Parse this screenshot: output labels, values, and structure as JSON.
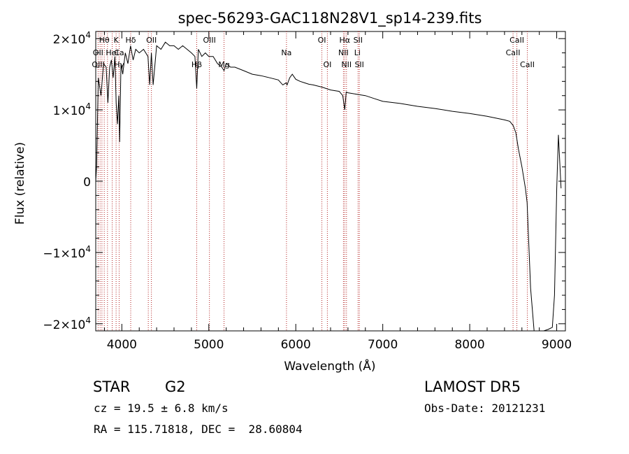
{
  "chart_data": {
    "type": "line",
    "title": "spec-56293-GAC118N28V1_sp14-239.fits",
    "xlabel": "Wavelength (Å)",
    "ylabel": "Flux (relative)",
    "xlim": [
      3700,
      9100
    ],
    "ylim": [
      -21000,
      21000
    ],
    "x_ticks": [
      4000,
      5000,
      6000,
      7000,
      8000,
      9000
    ],
    "x_tick_labels": [
      "4000",
      "5000",
      "6000",
      "7000",
      "8000",
      "9000"
    ],
    "y_ticks": [
      {
        "value": 20000,
        "mant": "2×10",
        "exp": "4"
      },
      {
        "value": 10000,
        "mant": "1×10",
        "exp": "4"
      },
      {
        "value": 0,
        "mant": "0",
        "exp": ""
      },
      {
        "value": -10000,
        "mant": "−1×10",
        "exp": "4"
      },
      {
        "value": -20000,
        "mant": "−2×10",
        "exp": "4"
      }
    ],
    "grid": false,
    "line_color": "#000000",
    "marker_color": "#b22222",
    "series": [
      {
        "x": [
          3700,
          3710,
          3730,
          3760,
          3790,
          3820,
          3840,
          3860,
          3880,
          3900,
          3920,
          3935,
          3950,
          3965,
          3975,
          3990,
          4010,
          4040,
          4070,
          4100,
          4130,
          4160,
          4200,
          4250,
          4300,
          4320,
          4340,
          4360,
          4400,
          4450,
          4500,
          4550,
          4600,
          4650,
          4700,
          4750,
          4800,
          4840,
          4861,
          4880,
          4920,
          4960,
          5000,
          5050,
          5100,
          5150,
          5175,
          5200,
          5250,
          5300,
          5400,
          5500,
          5600,
          5700,
          5800,
          5850,
          5890,
          5900,
          5930,
          5960,
          6000,
          6050,
          6100,
          6150,
          6200,
          6300,
          6400,
          6500,
          6540,
          6563,
          6580,
          6600,
          6700,
          6800,
          6900,
          7000,
          7200,
          7400,
          7600,
          7800,
          8000,
          8200,
          8400,
          8460,
          8500,
          8530,
          8560,
          8600,
          8640,
          8660,
          8680,
          8700,
          8720,
          8740,
          8760,
          8780,
          8800,
          8850,
          8900,
          8950,
          8975,
          9000,
          9020,
          9050
        ],
        "y": [
          0,
          2000,
          14500,
          12000,
          16500,
          16000,
          11000,
          16000,
          17000,
          14500,
          17500,
          11000,
          8000,
          12000,
          5500,
          16500,
          15000,
          18000,
          16500,
          19000,
          17000,
          18500,
          18000,
          18500,
          17500,
          13500,
          18000,
          13500,
          19000,
          18500,
          19500,
          19000,
          19000,
          18500,
          19000,
          18500,
          18000,
          17500,
          13000,
          18500,
          17500,
          18000,
          17500,
          17500,
          16500,
          16000,
          15500,
          16500,
          16000,
          16000,
          15500,
          15000,
          14800,
          14500,
          14200,
          13500,
          13800,
          13500,
          14500,
          15000,
          14300,
          14000,
          13800,
          13600,
          13500,
          13200,
          12800,
          12600,
          12000,
          10000,
          12500,
          12400,
          12200,
          12000,
          11600,
          11200,
          10900,
          10500,
          10200,
          9800,
          9500,
          9100,
          8600,
          8400,
          7800,
          6800,
          4500,
          2000,
          -1000,
          -3000,
          -9000,
          -15000,
          -18000,
          -21000,
          -21000,
          -21000,
          -21000,
          -21000,
          -20800,
          -20500,
          -16000,
          -1000,
          6500,
          -1000
        ]
      }
    ],
    "line_markers": [
      {
        "label": "Hθ",
        "x": 3798,
        "row": 1
      },
      {
        "label": "OII",
        "x": 3727,
        "row": 2
      },
      {
        "label": "OIII",
        "x": 3729,
        "row": 3
      },
      {
        "label": "K",
        "x": 3934,
        "row": 1
      },
      {
        "label": "HeI",
        "x": 3889,
        "row": 2
      },
      {
        "label": "Hγ",
        "x": 3970,
        "row": 3
      },
      {
        "label": "Hδ",
        "x": 4102,
        "row": 1
      },
      {
        "label": "Ca",
        "x": 3969,
        "row": 2
      },
      {
        "label": "OII",
        "x": 4340,
        "row": 1
      },
      {
        "label": "Hβ",
        "x": 4861,
        "row": 3
      },
      {
        "label": "OIII",
        "x": 5007,
        "row": 1
      },
      {
        "label": "Mg",
        "x": 5175,
        "row": 3
      },
      {
        "label": "Na",
        "x": 5893,
        "row": 2
      },
      {
        "label": "OI",
        "x": 6300,
        "row": 1
      },
      {
        "label": "OI",
        "x": 6363,
        "row": 3
      },
      {
        "label": "Hα",
        "x": 6563,
        "row": 1
      },
      {
        "label": "SII",
        "x": 6716,
        "row": 1
      },
      {
        "label": "NII",
        "x": 6548,
        "row": 2
      },
      {
        "label": "Li",
        "x": 6708,
        "row": 2
      },
      {
        "label": "NII",
        "x": 6583,
        "row": 3
      },
      {
        "label": "SII",
        "x": 6731,
        "row": 3
      },
      {
        "label": "CaII",
        "x": 8542,
        "row": 1
      },
      {
        "label": "CaII",
        "x": 8498,
        "row": 2
      },
      {
        "label": "CaII",
        "x": 8662,
        "row": 3
      }
    ],
    "marker_lines_x": [
      3727,
      3750,
      3771,
      3798,
      3835,
      3889,
      3934,
      3969,
      4102,
      4304,
      4340,
      4861,
      5007,
      5175,
      5893,
      6300,
      6363,
      6548,
      6563,
      6583,
      6716,
      6731,
      8498,
      8542,
      8662
    ]
  },
  "info": {
    "class_label": "STAR",
    "subclass": "G2",
    "survey": "LAMOST DR5",
    "redshift": "cz = 19.5 ± 6.8 km/s",
    "obs_date": "Obs-Date: 20121231",
    "coords": "RA = 115.71818, DEC =  28.60804"
  }
}
